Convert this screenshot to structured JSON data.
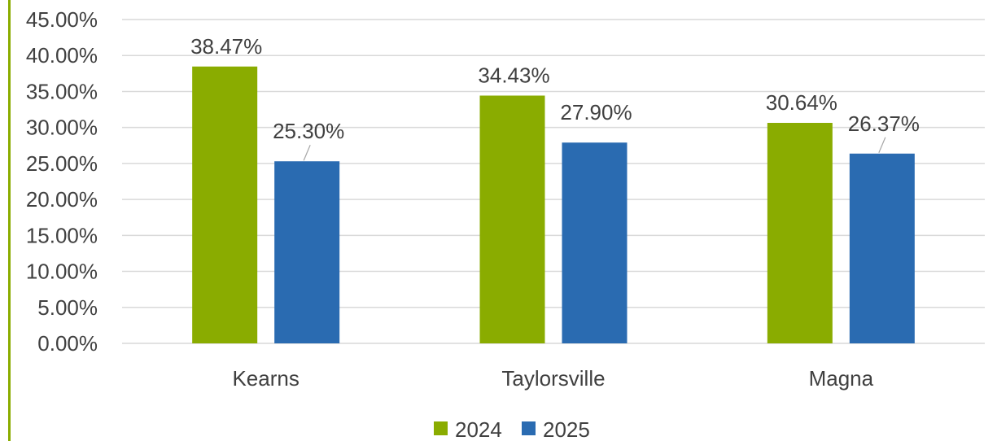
{
  "chart_data": {
    "type": "bar",
    "categories": [
      "Kearns",
      "Taylorsville",
      "Magna"
    ],
    "series": [
      {
        "name": "2024",
        "color": "#8aac00",
        "values": [
          38.47,
          34.43,
          30.64
        ],
        "labels": [
          "38.47%",
          "34.43%",
          "30.64%"
        ]
      },
      {
        "name": "2025",
        "color": "#2a6bb1",
        "values": [
          25.3,
          27.9,
          26.37
        ],
        "labels": [
          "25.30%",
          "27.90%",
          "26.37%"
        ]
      }
    ],
    "ylim": [
      0,
      45
    ],
    "yticks": [
      "0.00%",
      "5.00%",
      "10.00%",
      "15.00%",
      "20.00%",
      "25.00%",
      "30.00%",
      "35.00%",
      "40.00%",
      "45.00%"
    ],
    "ytick_values": [
      0,
      5,
      10,
      15,
      20,
      25,
      30,
      35,
      40,
      45
    ],
    "grid": true,
    "legend": "bottom",
    "title": "",
    "xlabel": "",
    "ylabel": ""
  }
}
